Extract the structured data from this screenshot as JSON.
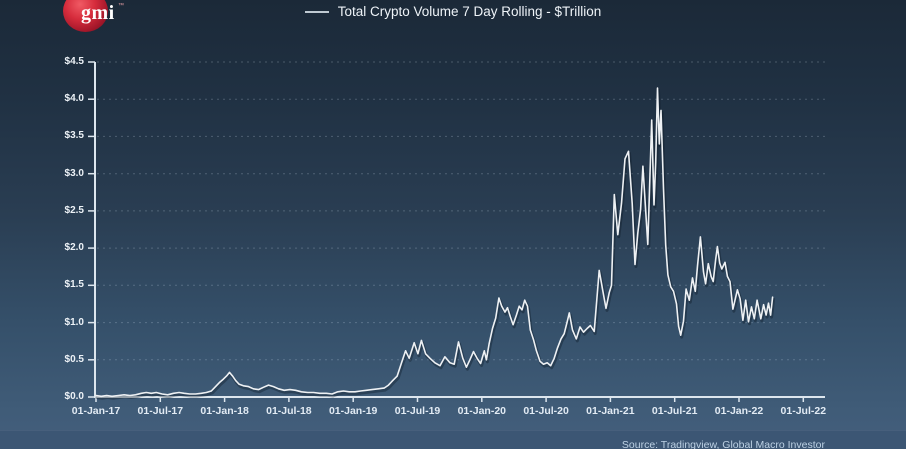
{
  "brand": {
    "logo_text": "gmi",
    "logo_tm": "™",
    "logo_color": "#c8102e"
  },
  "header": {
    "legend_label": "Total Crypto Volume 7 Day Rolling - $Trillion"
  },
  "footer": {
    "source_text": "Source: Tradingview, Global Macro Investor"
  },
  "chart_data": {
    "type": "line",
    "title": "Total Crypto Volume 7 Day Rolling - $Trillion",
    "xlabel": "",
    "ylabel": "",
    "ylim": [
      0,
      4.5
    ],
    "x_domain": [
      "2017-01-01",
      "2022-07-01"
    ],
    "grid": "horizontal-dashed",
    "legend_position": "top-center",
    "colors": {
      "line": "#eef1f4",
      "axis": "#dde6ee",
      "grid": "rgba(205,220,235,0.25)"
    },
    "y_tick_labels": [
      "$0.0",
      "$0.5",
      "$1.0",
      "$1.5",
      "$2.0",
      "$2.5",
      "$3.0",
      "$3.5",
      "$4.0",
      "$4.5"
    ],
    "x_tick_labels": [
      "01-Jan-17",
      "01-Jul-17",
      "01-Jan-18",
      "01-Jul-18",
      "01-Jan-19",
      "01-Jul-19",
      "01-Jan-20",
      "01-Jul-20",
      "01-Jan-21",
      "01-Jul-21",
      "01-Jan-22",
      "01-Jul-22"
    ],
    "series": [
      {
        "name": "Total Crypto Volume 7 Day Rolling ($Trillion)",
        "points": [
          [
            "2017-01-01",
            0.02
          ],
          [
            "2017-01-16",
            0.01
          ],
          [
            "2017-02-01",
            0.02
          ],
          [
            "2017-02-16",
            0.01
          ],
          [
            "2017-03-04",
            0.02
          ],
          [
            "2017-03-20",
            0.03
          ],
          [
            "2017-04-06",
            0.02
          ],
          [
            "2017-04-22",
            0.03
          ],
          [
            "2017-05-08",
            0.05
          ],
          [
            "2017-05-22",
            0.06
          ],
          [
            "2017-06-06",
            0.05
          ],
          [
            "2017-06-20",
            0.06
          ],
          [
            "2017-07-06",
            0.04
          ],
          [
            "2017-07-22",
            0.03
          ],
          [
            "2017-08-08",
            0.05
          ],
          [
            "2017-08-24",
            0.06
          ],
          [
            "2017-09-08",
            0.05
          ],
          [
            "2017-09-24",
            0.04
          ],
          [
            "2017-10-10",
            0.04
          ],
          [
            "2017-10-26",
            0.05
          ],
          [
            "2017-11-10",
            0.06
          ],
          [
            "2017-11-24",
            0.08
          ],
          [
            "2017-12-08",
            0.15
          ],
          [
            "2017-12-18",
            0.2
          ],
          [
            "2017-12-28",
            0.24
          ],
          [
            "2018-01-08",
            0.29
          ],
          [
            "2018-01-15",
            0.33
          ],
          [
            "2018-01-24",
            0.28
          ],
          [
            "2018-02-02",
            0.22
          ],
          [
            "2018-02-12",
            0.17
          ],
          [
            "2018-02-24",
            0.15
          ],
          [
            "2018-03-08",
            0.14
          ],
          [
            "2018-03-22",
            0.11
          ],
          [
            "2018-04-06",
            0.1
          ],
          [
            "2018-04-20",
            0.13
          ],
          [
            "2018-05-04",
            0.16
          ],
          [
            "2018-05-18",
            0.14
          ],
          [
            "2018-06-02",
            0.11
          ],
          [
            "2018-06-18",
            0.09
          ],
          [
            "2018-07-04",
            0.1
          ],
          [
            "2018-07-20",
            0.09
          ],
          [
            "2018-08-06",
            0.07
          ],
          [
            "2018-08-24",
            0.06
          ],
          [
            "2018-09-10",
            0.06
          ],
          [
            "2018-09-28",
            0.05
          ],
          [
            "2018-10-16",
            0.05
          ],
          [
            "2018-11-02",
            0.04
          ],
          [
            "2018-11-18",
            0.07
          ],
          [
            "2018-12-04",
            0.08
          ],
          [
            "2018-12-20",
            0.07
          ],
          [
            "2019-01-06",
            0.07
          ],
          [
            "2019-01-22",
            0.08
          ],
          [
            "2019-02-08",
            0.09
          ],
          [
            "2019-02-24",
            0.1
          ],
          [
            "2019-03-12",
            0.11
          ],
          [
            "2019-03-28",
            0.12
          ],
          [
            "2019-04-10",
            0.16
          ],
          [
            "2019-04-22",
            0.22
          ],
          [
            "2019-05-04",
            0.28
          ],
          [
            "2019-05-16",
            0.45
          ],
          [
            "2019-05-28",
            0.62
          ],
          [
            "2019-06-08",
            0.52
          ],
          [
            "2019-06-22",
            0.73
          ],
          [
            "2019-07-02",
            0.58
          ],
          [
            "2019-07-12",
            0.76
          ],
          [
            "2019-07-24",
            0.58
          ],
          [
            "2019-08-06",
            0.52
          ],
          [
            "2019-08-20",
            0.46
          ],
          [
            "2019-09-04",
            0.42
          ],
          [
            "2019-09-18",
            0.54
          ],
          [
            "2019-10-02",
            0.46
          ],
          [
            "2019-10-14",
            0.44
          ],
          [
            "2019-10-26",
            0.74
          ],
          [
            "2019-11-08",
            0.52
          ],
          [
            "2019-11-18",
            0.4
          ],
          [
            "2019-11-28",
            0.5
          ],
          [
            "2019-12-08",
            0.61
          ],
          [
            "2019-12-18",
            0.52
          ],
          [
            "2019-12-28",
            0.45
          ],
          [
            "2020-01-08",
            0.62
          ],
          [
            "2020-01-14",
            0.5
          ],
          [
            "2020-01-22",
            0.72
          ],
          [
            "2020-02-01",
            0.92
          ],
          [
            "2020-02-10",
            1.06
          ],
          [
            "2020-02-19",
            1.33
          ],
          [
            "2020-02-27",
            1.22
          ],
          [
            "2020-03-06",
            1.14
          ],
          [
            "2020-03-13",
            1.2
          ],
          [
            "2020-03-21",
            1.08
          ],
          [
            "2020-03-29",
            0.97
          ],
          [
            "2020-04-08",
            1.1
          ],
          [
            "2020-04-16",
            1.22
          ],
          [
            "2020-04-24",
            1.17
          ],
          [
            "2020-05-01",
            1.3
          ],
          [
            "2020-05-09",
            1.22
          ],
          [
            "2020-05-17",
            0.9
          ],
          [
            "2020-05-26",
            0.77
          ],
          [
            "2020-06-04",
            0.62
          ],
          [
            "2020-06-14",
            0.48
          ],
          [
            "2020-06-24",
            0.44
          ],
          [
            "2020-07-04",
            0.46
          ],
          [
            "2020-07-14",
            0.42
          ],
          [
            "2020-07-24",
            0.52
          ],
          [
            "2020-08-03",
            0.66
          ],
          [
            "2020-08-13",
            0.78
          ],
          [
            "2020-08-22",
            0.85
          ],
          [
            "2020-08-30",
            1.0
          ],
          [
            "2020-09-06",
            1.13
          ],
          [
            "2020-09-15",
            0.9
          ],
          [
            "2020-09-26",
            0.78
          ],
          [
            "2020-10-06",
            0.94
          ],
          [
            "2020-10-16",
            0.87
          ],
          [
            "2020-10-26",
            0.92
          ],
          [
            "2020-11-05",
            0.96
          ],
          [
            "2020-11-16",
            0.88
          ],
          [
            "2020-11-30",
            1.7
          ],
          [
            "2020-12-10",
            1.42
          ],
          [
            "2020-12-19",
            1.19
          ],
          [
            "2020-12-28",
            1.4
          ],
          [
            "2021-01-04",
            1.5
          ],
          [
            "2021-01-12",
            2.72
          ],
          [
            "2021-01-22",
            2.18
          ],
          [
            "2021-02-02",
            2.6
          ],
          [
            "2021-02-12",
            3.2
          ],
          [
            "2021-02-22",
            3.3
          ],
          [
            "2021-03-02",
            2.6
          ],
          [
            "2021-03-10",
            1.78
          ],
          [
            "2021-03-18",
            2.2
          ],
          [
            "2021-03-26",
            2.52
          ],
          [
            "2021-04-02",
            3.1
          ],
          [
            "2021-04-10",
            2.5
          ],
          [
            "2021-04-16",
            2.05
          ],
          [
            "2021-04-22",
            2.95
          ],
          [
            "2021-04-27",
            3.72
          ],
          [
            "2021-05-03",
            2.58
          ],
          [
            "2021-05-08",
            3.15
          ],
          [
            "2021-05-13",
            4.15
          ],
          [
            "2021-05-18",
            3.4
          ],
          [
            "2021-05-23",
            3.85
          ],
          [
            "2021-05-30",
            2.8
          ],
          [
            "2021-06-06",
            2.04
          ],
          [
            "2021-06-12",
            1.64
          ],
          [
            "2021-06-20",
            1.48
          ],
          [
            "2021-06-28",
            1.42
          ],
          [
            "2021-07-06",
            1.25
          ],
          [
            "2021-07-12",
            0.95
          ],
          [
            "2021-07-18",
            0.83
          ],
          [
            "2021-07-26",
            1.02
          ],
          [
            "2021-08-03",
            1.45
          ],
          [
            "2021-08-12",
            1.3
          ],
          [
            "2021-08-21",
            1.6
          ],
          [
            "2021-08-29",
            1.42
          ],
          [
            "2021-09-05",
            1.76
          ],
          [
            "2021-09-13",
            2.15
          ],
          [
            "2021-09-22",
            1.68
          ],
          [
            "2021-09-28",
            1.52
          ],
          [
            "2021-10-05",
            1.79
          ],
          [
            "2021-10-13",
            1.62
          ],
          [
            "2021-10-19",
            1.55
          ],
          [
            "2021-10-26",
            1.85
          ],
          [
            "2021-10-31",
            2.02
          ],
          [
            "2021-11-07",
            1.8
          ],
          [
            "2021-11-13",
            1.72
          ],
          [
            "2021-11-22",
            1.81
          ],
          [
            "2021-11-29",
            1.62
          ],
          [
            "2021-12-06",
            1.55
          ],
          [
            "2021-12-14",
            1.18
          ],
          [
            "2021-12-20",
            1.3
          ],
          [
            "2021-12-27",
            1.44
          ],
          [
            "2022-01-04",
            1.32
          ],
          [
            "2022-01-12",
            1.03
          ],
          [
            "2022-01-20",
            1.3
          ],
          [
            "2022-01-28",
            1.01
          ],
          [
            "2022-02-06",
            1.21
          ],
          [
            "2022-02-14",
            1.05
          ],
          [
            "2022-02-22",
            1.3
          ],
          [
            "2022-03-02",
            1.05
          ],
          [
            "2022-03-10",
            1.24
          ],
          [
            "2022-03-17",
            1.1
          ],
          [
            "2022-03-24",
            1.26
          ],
          [
            "2022-03-30",
            1.1
          ],
          [
            "2022-04-05",
            1.34
          ]
        ]
      }
    ]
  }
}
